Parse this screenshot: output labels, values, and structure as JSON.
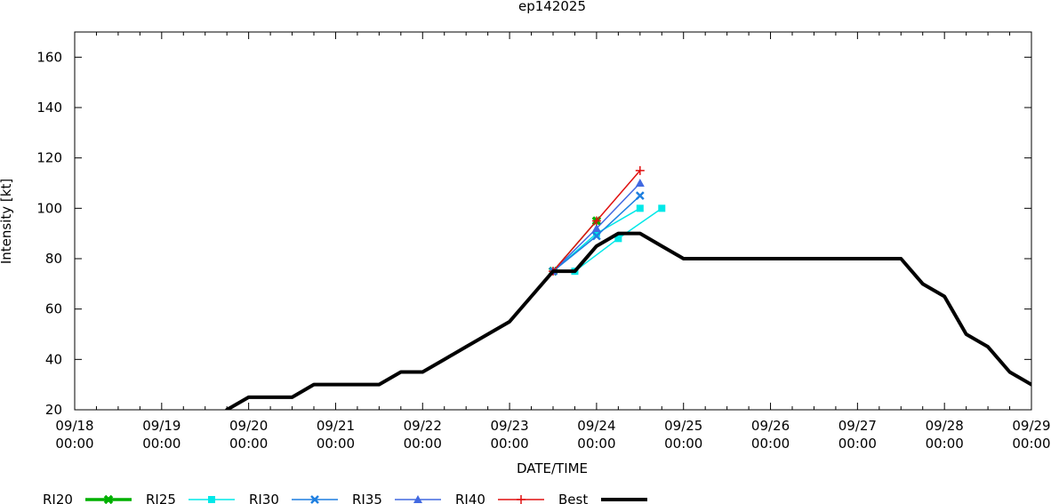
{
  "chart_data": {
    "type": "line",
    "title": "ep142025",
    "xlabel": "DATE/TIME",
    "ylabel": "Intensity [kt]",
    "xlim": [
      "09/18 00:00",
      "09/29 00:00"
    ],
    "ylim": [
      20,
      170
    ],
    "yticks": [
      20,
      40,
      60,
      80,
      100,
      120,
      140,
      160
    ],
    "xticks": [
      {
        "date": "09/18 00:00",
        "line1": "09/18",
        "line2": "00:00"
      },
      {
        "date": "09/19 00:00",
        "line1": "09/19",
        "line2": "00:00"
      },
      {
        "date": "09/20 00:00",
        "line1": "09/20",
        "line2": "00:00"
      },
      {
        "date": "09/21 00:00",
        "line1": "09/21",
        "line2": "00:00"
      },
      {
        "date": "09/22 00:00",
        "line1": "09/22",
        "line2": "00:00"
      },
      {
        "date": "09/23 00:00",
        "line1": "09/23",
        "line2": "00:00"
      },
      {
        "date": "09/24 00:00",
        "line1": "09/24",
        "line2": "00:00"
      },
      {
        "date": "09/25 00:00",
        "line1": "09/25",
        "line2": "00:00"
      },
      {
        "date": "09/26 00:00",
        "line1": "09/26",
        "line2": "00:00"
      },
      {
        "date": "09/27 00:00",
        "line1": "09/27",
        "line2": "00:00"
      },
      {
        "date": "09/28 00:00",
        "line1": "09/28",
        "line2": "00:00"
      },
      {
        "date": "09/29 00:00",
        "line1": "09/29",
        "line2": "00:00"
      }
    ],
    "grid": false,
    "legend_position": "bottom",
    "series": [
      {
        "name": "RI20",
        "color": "#00b000",
        "marker": "cross",
        "points": [
          {
            "x": "09/23 12:00",
            "y": 75
          },
          {
            "x": "09/24 00:00",
            "y": 95
          }
        ]
      },
      {
        "name": "RI25",
        "color": "#00e8e8",
        "marker": "square",
        "points": [
          {
            "x": "09/23 12:00",
            "y": 75
          },
          {
            "x": "09/24 00:00",
            "y": 90
          },
          {
            "x": "09/24 12:00",
            "y": 100
          }
        ]
      },
      {
        "name": "RI25",
        "color": "#00e8e8",
        "marker": "square",
        "legend": false,
        "points": [
          {
            "x": "09/23 18:00",
            "y": 75
          },
          {
            "x": "09/24 06:00",
            "y": 88
          },
          {
            "x": "09/24 18:00",
            "y": 100
          }
        ]
      },
      {
        "name": "RI30",
        "color": "#1e7fe0",
        "marker": "x",
        "points": [
          {
            "x": "09/23 12:00",
            "y": 75
          },
          {
            "x": "09/24 00:00",
            "y": 89
          },
          {
            "x": "09/24 12:00",
            "y": 105
          }
        ]
      },
      {
        "name": "RI35",
        "color": "#4169e1",
        "marker": "triangle",
        "points": [
          {
            "x": "09/23 12:00",
            "y": 75
          },
          {
            "x": "09/24 00:00",
            "y": 92
          },
          {
            "x": "09/24 12:00",
            "y": 110
          }
        ]
      },
      {
        "name": "RI40",
        "color": "#e01010",
        "marker": "plus",
        "points": [
          {
            "x": "09/23 12:00",
            "y": 75
          },
          {
            "x": "09/24 00:00",
            "y": 95
          },
          {
            "x": "09/24 12:00",
            "y": 115
          }
        ]
      },
      {
        "name": "Best",
        "color": "#000000",
        "marker": "none",
        "width": 4,
        "points": [
          {
            "x": "09/19 18:00",
            "y": 20
          },
          {
            "x": "09/20 00:00",
            "y": 25
          },
          {
            "x": "09/20 12:00",
            "y": 25
          },
          {
            "x": "09/20 18:00",
            "y": 30
          },
          {
            "x": "09/21 00:00",
            "y": 30
          },
          {
            "x": "09/21 12:00",
            "y": 30
          },
          {
            "x": "09/21 18:00",
            "y": 35
          },
          {
            "x": "09/22 00:00",
            "y": 35
          },
          {
            "x": "09/22 06:00",
            "y": 40
          },
          {
            "x": "09/22 12:00",
            "y": 45
          },
          {
            "x": "09/22 18:00",
            "y": 50
          },
          {
            "x": "09/23 00:00",
            "y": 55
          },
          {
            "x": "09/23 06:00",
            "y": 65
          },
          {
            "x": "09/23 12:00",
            "y": 75
          },
          {
            "x": "09/23 18:00",
            "y": 75
          },
          {
            "x": "09/24 00:00",
            "y": 85
          },
          {
            "x": "09/24 06:00",
            "y": 90
          },
          {
            "x": "09/24 12:00",
            "y": 90
          },
          {
            "x": "09/24 18:00",
            "y": 85
          },
          {
            "x": "09/25 00:00",
            "y": 80
          },
          {
            "x": "09/26 00:00",
            "y": 80
          },
          {
            "x": "09/27 00:00",
            "y": 80
          },
          {
            "x": "09/27 12:00",
            "y": 80
          },
          {
            "x": "09/27 18:00",
            "y": 70
          },
          {
            "x": "09/28 00:00",
            "y": 65
          },
          {
            "x": "09/28 06:00",
            "y": 50
          },
          {
            "x": "09/28 12:00",
            "y": 45
          },
          {
            "x": "09/28 18:00",
            "y": 35
          },
          {
            "x": "09/29 00:00",
            "y": 30
          }
        ]
      }
    ]
  }
}
